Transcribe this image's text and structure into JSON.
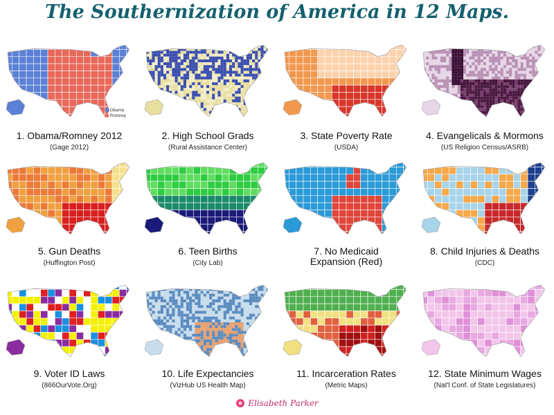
{
  "title": "The Southernization of America in 12 Maps.",
  "maps": [
    {
      "caption": "1. Obama/Romney 2012",
      "source": "(Gage 2012)",
      "legend": [
        "Obama",
        "Romney"
      ]
    },
    {
      "caption": "2. High School Grads",
      "source": "(Rural Assistance Center)"
    },
    {
      "caption": "3. State Poverty Rate",
      "source": "(USDA)"
    },
    {
      "caption": "4. Evangelicals & Mormons",
      "source": "(US Religion Census/ASRB)"
    },
    {
      "caption": "5. Gun Deaths",
      "source": "(Huffington Post)"
    },
    {
      "caption": "6. Teen Births",
      "source": "(City Lab)"
    },
    {
      "caption": "7. No Medicaid Expansion (Red)"
    },
    {
      "caption": "8. Child Injuries & Deaths",
      "source": "(CDC)"
    },
    {
      "caption": "9. Voter ID Laws",
      "source": "(866OurVote.Org)"
    },
    {
      "caption": "10. Life Expectancies",
      "source": "(VizHub US Health Map)"
    },
    {
      "caption": "11. Incarceration Rates",
      "source": "(Metric Maps)"
    },
    {
      "caption": "12. State Minimum Wages",
      "source": "(Nat'l Conf. of State Legislatures)"
    }
  ],
  "footer": "Elisabeth Parker"
}
